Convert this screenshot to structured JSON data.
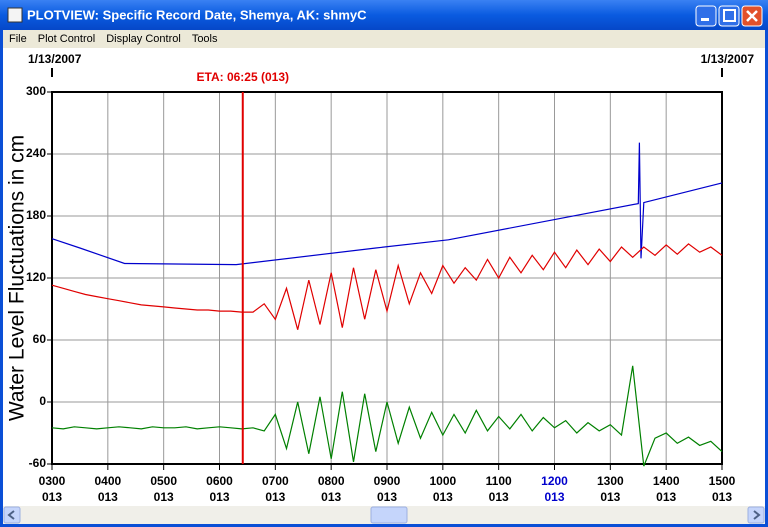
{
  "window": {
    "title": "PLOTVIEW: Specific Record Date, Shemya, AK: shmyC"
  },
  "menu": [
    "File",
    "Plot Control",
    "Display Control",
    "Tools"
  ],
  "chart_data": {
    "type": "line",
    "ylabel": "Water Level Fluctuations in cm",
    "date_left": "1/13/2007",
    "date_right": "1/13/2007",
    "eta": {
      "label": "ETA: 06:25 (013)",
      "x": 6.4167,
      "color": "#e00000"
    },
    "xlim": [
      3,
      15
    ],
    "xticks": [
      {
        "value": 3,
        "label": "0300"
      },
      {
        "value": 4,
        "label": "0400"
      },
      {
        "value": 5,
        "label": "0500"
      },
      {
        "value": 6,
        "label": "0600"
      },
      {
        "value": 7,
        "label": "0700"
      },
      {
        "value": 8,
        "label": "0800"
      },
      {
        "value": 9,
        "label": "0900"
      },
      {
        "value": 10,
        "label": "1000"
      },
      {
        "value": 11,
        "label": "1100"
      },
      {
        "value": 12,
        "label": "1200"
      },
      {
        "value": 13,
        "label": "1300"
      },
      {
        "value": 14,
        "label": "1400"
      },
      {
        "value": 15,
        "label": "1500"
      }
    ],
    "xtick_days": [
      "013",
      "013",
      "013",
      "013",
      "013",
      "013",
      "013",
      "013",
      "013",
      "013",
      "013",
      "013",
      "013"
    ],
    "highlight_xtick": 12,
    "highlight_color": "#0000cc",
    "ylim": [
      -60,
      300
    ],
    "yticks": [
      -60,
      0,
      60,
      120,
      180,
      240,
      300
    ],
    "grid": true,
    "x": [
      3.0,
      3.2,
      3.4,
      3.6,
      3.8,
      4.0,
      4.2,
      4.4,
      4.6,
      4.8,
      5.0,
      5.2,
      5.4,
      5.6,
      5.8,
      6.0,
      6.2,
      6.4,
      6.6,
      6.8,
      7.0,
      7.2,
      7.4,
      7.6,
      7.8,
      8.0,
      8.2,
      8.4,
      8.6,
      8.8,
      9.0,
      9.2,
      9.4,
      9.6,
      9.8,
      10.0,
      10.2,
      10.4,
      10.6,
      10.8,
      11.0,
      11.2,
      11.4,
      11.6,
      11.8,
      12.0,
      12.2,
      12.4,
      12.6,
      12.8,
      13.0,
      13.2,
      13.4,
      13.6,
      13.8,
      14.0,
      14.2,
      14.4,
      14.6,
      14.8,
      15.0
    ],
    "series": [
      {
        "color": "#0000cc",
        "x": [
          3,
          3.5,
          4.3,
          6.3,
          8.8,
          10.1,
          13.5,
          13.52,
          13.55,
          13.6,
          15
        ],
        "values": [
          158,
          149,
          134,
          133,
          149,
          157,
          192,
          251,
          139,
          193,
          212
        ]
      },
      {
        "color": "#e00000",
        "values": [
          113,
          110,
          107,
          104,
          102,
          100,
          98,
          96,
          94,
          93,
          92,
          91,
          90,
          89,
          89,
          88,
          88,
          87,
          87,
          95,
          80,
          110,
          70,
          118,
          75,
          125,
          72,
          130,
          80,
          128,
          88,
          132,
          95,
          125,
          105,
          132,
          115,
          130,
          118,
          138,
          120,
          140,
          125,
          142,
          128,
          145,
          130,
          147,
          133,
          148,
          136,
          150,
          140,
          150,
          142,
          152,
          143,
          153,
          145,
          150,
          142
        ]
      },
      {
        "color": "#008000",
        "values": [
          -25,
          -26,
          -24,
          -25,
          -26,
          -25,
          -24,
          -25,
          -26,
          -24,
          -25,
          -25,
          -24,
          -26,
          -25,
          -24,
          -25,
          -26,
          -25,
          -28,
          -12,
          -45,
          0,
          -50,
          5,
          -55,
          10,
          -58,
          8,
          -48,
          0,
          -40,
          -5,
          -35,
          -10,
          -32,
          -12,
          -30,
          -8,
          -28,
          -14,
          -26,
          -12,
          -28,
          -15,
          -25,
          -18,
          -30,
          -20,
          -28,
          -22,
          -32,
          35,
          -62,
          -35,
          -30,
          -40,
          -34,
          -42,
          -38,
          -48
        ]
      }
    ]
  }
}
